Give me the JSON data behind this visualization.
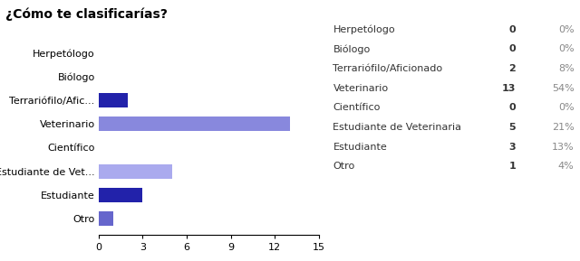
{
  "title": "¿Cómo te clasificarías?",
  "categories": [
    "Herpetólogo",
    "Biólogo",
    "Terrariófilo/Afic...",
    "Veterinario",
    "Científico",
    "Estudiante de Vet...",
    "Estudiante",
    "Otro"
  ],
  "values": [
    0,
    0,
    2,
    13,
    0,
    5,
    3,
    1
  ],
  "bar_colors": [
    "#8080cc",
    "#8080cc",
    "#2222aa",
    "#8888dd",
    "#8080cc",
    "#aaaaee",
    "#2222aa",
    "#6666cc"
  ],
  "table_labels": [
    "Herpetólogo",
    "Biólogo",
    "Terrariófilo/Aficionado",
    "Veterinario",
    "Científico",
    "Estudiante de Veterinaria",
    "Estudiante",
    "Otro"
  ],
  "table_counts": [
    0,
    0,
    2,
    13,
    0,
    5,
    3,
    1
  ],
  "table_percents": [
    "0%",
    "0%",
    "8%",
    "54%",
    "0%",
    "21%",
    "13%",
    "4%"
  ],
  "xlim": [
    0,
    15
  ],
  "xticks": [
    0,
    3,
    6,
    9,
    12,
    15
  ],
  "background_color": "#ffffff",
  "title_fontsize": 10,
  "tick_fontsize": 8,
  "table_fontsize": 8
}
